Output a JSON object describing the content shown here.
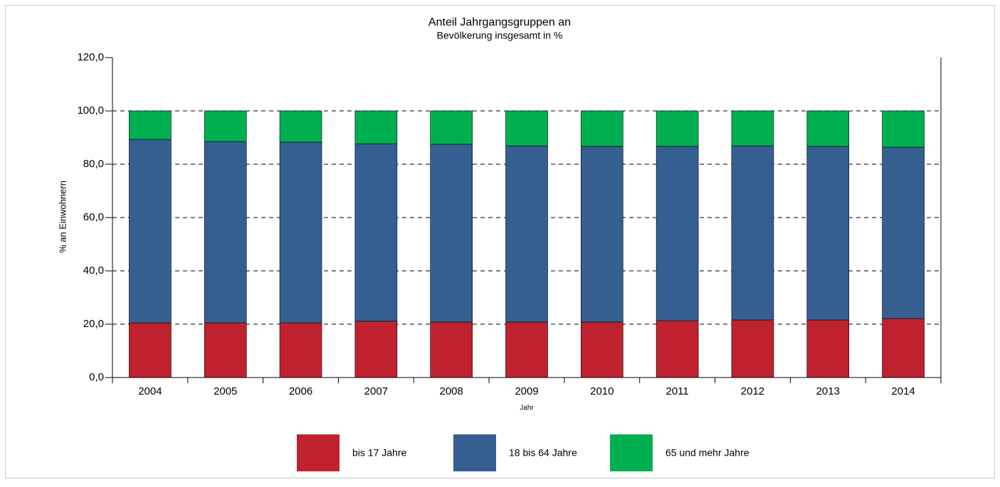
{
  "chart_data": {
    "type": "stacked_bar",
    "title": "Anteil Jahrgangsgruppen an",
    "subtitle": "Bevölkerung insgesamt in %",
    "y_label": "% an Einwohnern",
    "x_label": "Jahr",
    "categories": [
      "2004",
      "2005",
      "2006",
      "2007",
      "2008",
      "2009",
      "2010",
      "2011",
      "2012",
      "2013",
      "2014"
    ],
    "series": [
      {
        "name": "bis 17 Jahre",
        "color": "#c0212f",
        "values": [
          20.5,
          20.5,
          20.5,
          21.1,
          20.8,
          20.8,
          20.8,
          21.3,
          21.6,
          21.6,
          22.1
        ]
      },
      {
        "name": "18 bis 64 Jahre",
        "color": "#355f91",
        "values": [
          68.8,
          68.0,
          67.8,
          66.6,
          66.7,
          66.1,
          65.9,
          65.4,
          65.3,
          65.1,
          64.3
        ]
      },
      {
        "name": "65 und mehr Jahre",
        "color": "#00b050",
        "values": [
          10.7,
          11.5,
          11.7,
          12.3,
          12.5,
          13.1,
          13.3,
          13.3,
          13.1,
          13.3,
          13.6
        ]
      }
    ],
    "ylim": [
      0,
      120
    ],
    "yticks": [
      {
        "value": 0,
        "label": "0,0"
      },
      {
        "value": 20,
        "label": "20,0"
      },
      {
        "value": 40,
        "label": "40,0"
      },
      {
        "value": 60,
        "label": "60,0"
      },
      {
        "value": 80,
        "label": "80,0"
      },
      {
        "value": 100,
        "label": "100,0"
      },
      {
        "value": 120,
        "label": "120,0"
      }
    ],
    "grid": true,
    "legend": "bottom"
  }
}
